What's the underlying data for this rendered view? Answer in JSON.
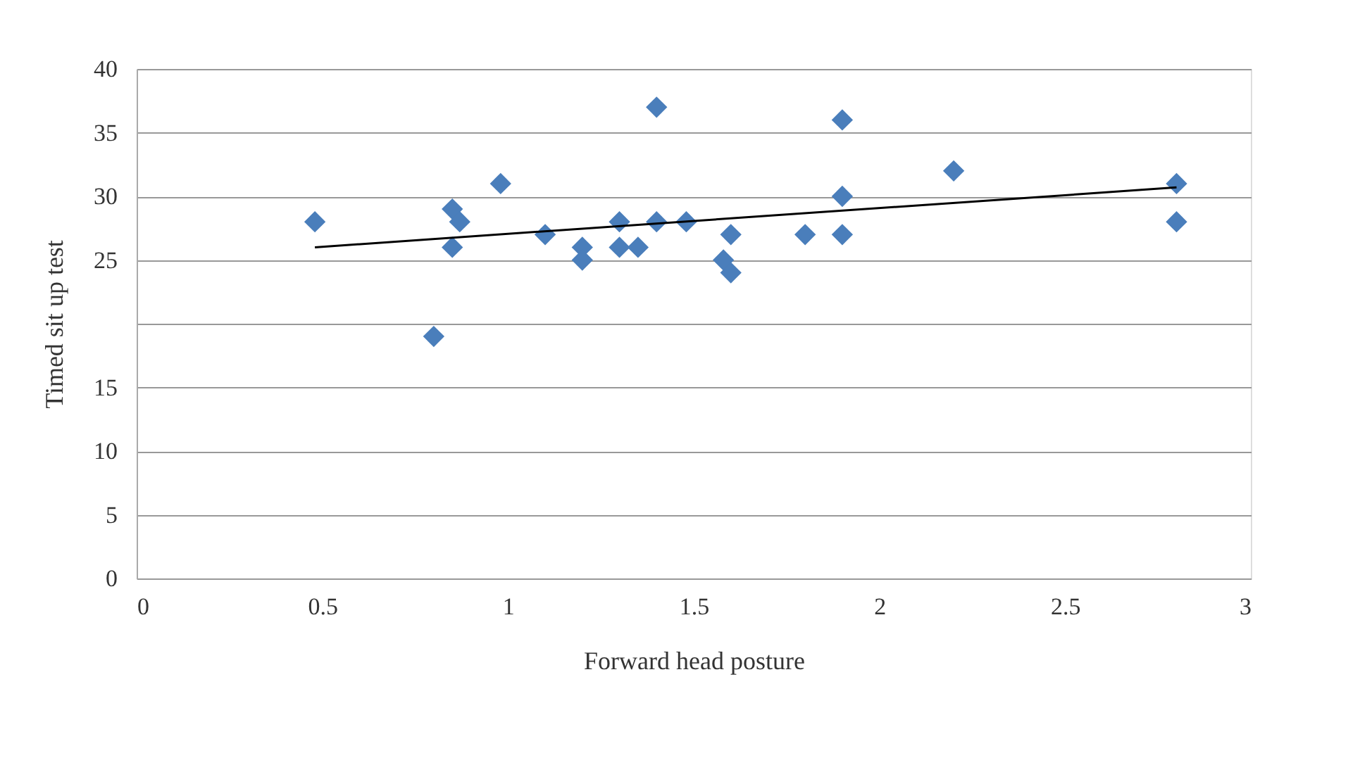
{
  "chart_data": {
    "type": "scatter",
    "xlabel": "Forward head posture",
    "ylabel": "Timed sit up test",
    "xlim": [
      0,
      3
    ],
    "xticks": [
      0,
      0.5,
      1,
      1.5,
      2,
      2.5,
      3
    ],
    "ylim": [
      0,
      40
    ],
    "yticks": [
      0,
      5,
      10,
      15,
      {
        "value": 20,
        "label": null
      },
      25,
      30,
      35,
      40
    ],
    "grid": "y",
    "series": [
      {
        "color": "#4a7ebb",
        "marker": "diamond",
        "x": [
          0.48,
          0.8,
          0.85,
          0.85,
          0.87,
          0.98,
          1.1,
          1.2,
          1.2,
          1.3,
          1.3,
          1.35,
          1.4,
          1.4,
          1.48,
          1.58,
          1.6,
          1.6,
          1.8,
          1.9,
          1.9,
          1.9,
          2.2,
          2.8,
          2.8
        ],
        "values": [
          28,
          19,
          29,
          26,
          28,
          31,
          27,
          26,
          25,
          28,
          26,
          26,
          37,
          28,
          28,
          25,
          24,
          27,
          27,
          36,
          30,
          27,
          32,
          31,
          28
        ]
      },
      {
        "type": "line",
        "color": "#000000",
        "marker": "none",
        "line_style": "solid",
        "x": [
          0.48,
          2.8
        ],
        "values": [
          26.0,
          30.7
        ]
      }
    ]
  }
}
